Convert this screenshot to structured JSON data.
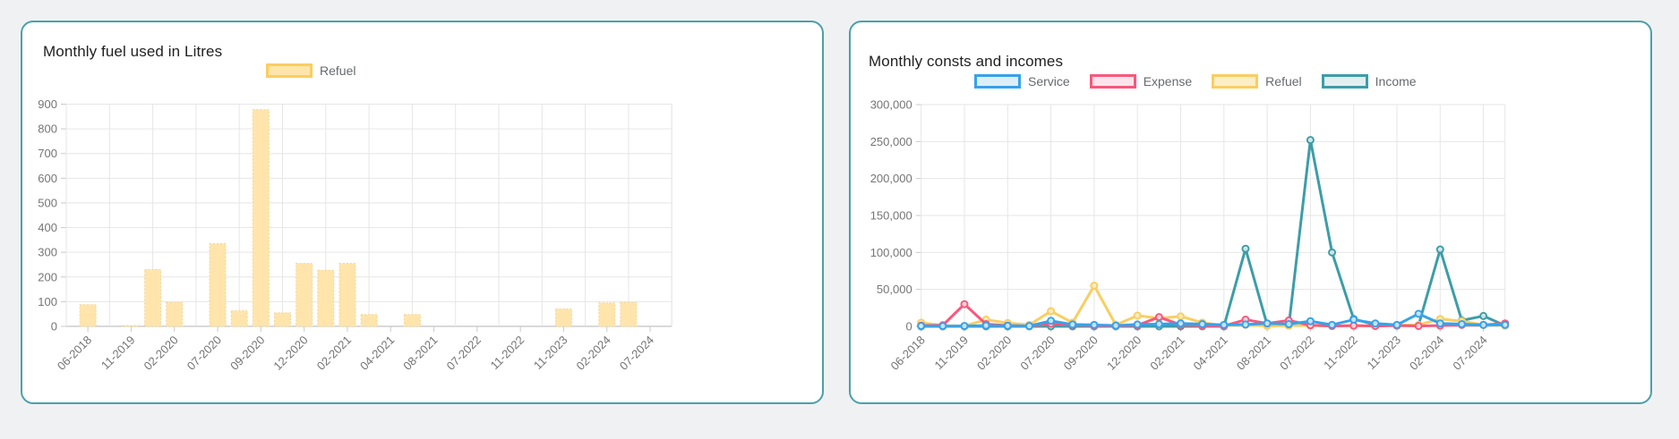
{
  "page": {
    "background": "#f0f1f2",
    "card_border_color": "#4ba0ac",
    "card_background": "#ffffff"
  },
  "chart_data": [
    {
      "type": "bar",
      "title": "Monthly fuel used in Litres",
      "legend": [
        {
          "label": "Refuel",
          "color": "#f9ce61",
          "fill": "#ffe5ac"
        }
      ],
      "categories": [
        "06-2018",
        "",
        "11-2019",
        "",
        "02-2020",
        "",
        "07-2020",
        "",
        "09-2020",
        "",
        "12-2020",
        "",
        "02-2021",
        "",
        "04-2021",
        "",
        "08-2021",
        "",
        "07-2022",
        "",
        "11-2022",
        "",
        "11-2023",
        "",
        "02-2024",
        "",
        "07-2024",
        ""
      ],
      "x_tick_labels": [
        "06-2018",
        "11-2019",
        "02-2020",
        "07-2020",
        "09-2020",
        "12-2020",
        "02-2021",
        "04-2021",
        "08-2021",
        "07-2022",
        "11-2022",
        "11-2023",
        "02-2024",
        "07-2024"
      ],
      "values": [
        88,
        0,
        3,
        230,
        97,
        0,
        335,
        63,
        878,
        55,
        255,
        227,
        255,
        48,
        0,
        48,
        0,
        0,
        0,
        0,
        0,
        0,
        70,
        0,
        95,
        97,
        0,
        0
      ],
      "ylim": [
        0,
        900
      ],
      "y_tick_step": 100,
      "y_format": "plain",
      "grid": true,
      "legend_position": "top",
      "bar_fill": "#ffe5ac",
      "bar_border": "#f3d593"
    },
    {
      "type": "line",
      "title": "Monthly consts and incomes",
      "categories": [
        "06-2018",
        "",
        "11-2019",
        "",
        "02-2020",
        "",
        "07-2020",
        "",
        "09-2020",
        "",
        "12-2020",
        "",
        "02-2021",
        "",
        "04-2021",
        "",
        "08-2021",
        "",
        "07-2022",
        "",
        "11-2022",
        "",
        "11-2023",
        "",
        "02-2024",
        "",
        "07-2024",
        ""
      ],
      "x_tick_labels": [
        "06-2018",
        "11-2019",
        "02-2020",
        "07-2020",
        "09-2020",
        "12-2020",
        "02-2021",
        "04-2021",
        "08-2021",
        "07-2022",
        "11-2022",
        "11-2023",
        "02-2024",
        "07-2024"
      ],
      "series": [
        {
          "name": "Service",
          "color": "#36a2eb",
          "fill": "#dceef8",
          "values": [
            500,
            300,
            500,
            1000,
            800,
            500,
            7500,
            2500,
            2000,
            1000,
            2500,
            3000,
            4000,
            3000,
            2000,
            2500,
            4000,
            3000,
            7000,
            2000,
            9000,
            4000,
            2000,
            17000,
            4000,
            3000,
            2000,
            2000
          ]
        },
        {
          "name": "Expense",
          "color": "#f8587c",
          "fill": "#fde3eb",
          "values": [
            1000,
            1500,
            30000,
            3000,
            1000,
            500,
            3500,
            2000,
            1000,
            500,
            1500,
            12500,
            2000,
            1000,
            500,
            9000,
            4000,
            8000,
            1500,
            500,
            1000,
            500,
            1000,
            500,
            1000,
            2000,
            2000,
            4000
          ]
        },
        {
          "name": "Refuel",
          "color": "#f9ce61",
          "fill": "#fcefc7",
          "values": [
            5000,
            1000,
            500,
            9000,
            4500,
            2000,
            20500,
            5000,
            55000,
            2000,
            14500,
            11000,
            13500,
            5000,
            1000,
            2000,
            500,
            1000,
            1000,
            500,
            500,
            500,
            1500,
            2000,
            10000,
            7000,
            2000,
            1000
          ]
        },
        {
          "name": "Income",
          "color": "#3d9da8",
          "fill": "#e2eff1",
          "values": [
            0,
            0,
            0,
            0,
            0,
            0,
            0,
            0,
            0,
            0,
            0,
            0,
            0,
            0,
            0,
            105000,
            2000,
            1000,
            252000,
            100000,
            10000,
            2000,
            1000,
            1500,
            104000,
            8000,
            14000,
            1000
          ]
        }
      ],
      "ylim": [
        0,
        300000
      ],
      "y_tick_step": 50000,
      "y_format": "comma",
      "grid": true,
      "legend_position": "top"
    }
  ]
}
